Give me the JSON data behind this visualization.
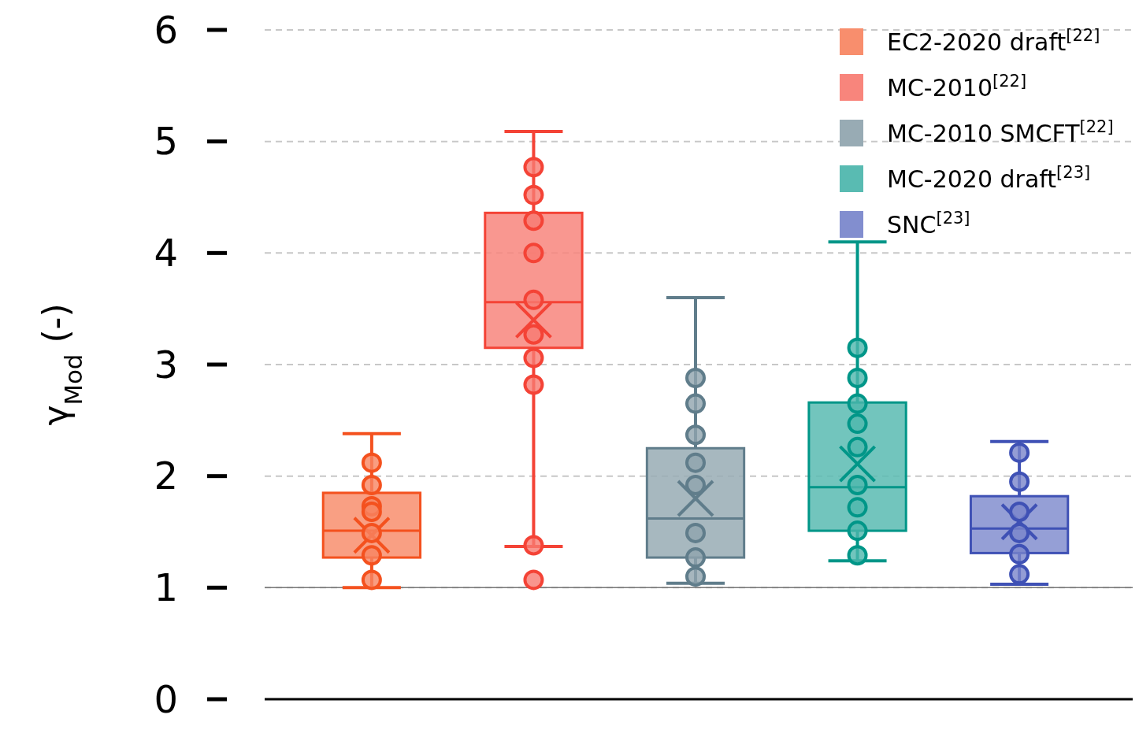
{
  "chart_data": {
    "type": "box",
    "ylabel": "γ$_{Mod}$ (-)",
    "categories": [
      null,
      null,
      null,
      null,
      null
    ],
    "ylim": [
      0,
      6
    ],
    "yticks": [
      0,
      1,
      2,
      3,
      4,
      5,
      6
    ],
    "grid": "y",
    "legend": "top right",
    "marker": "circle",
    "ref_lines": [
      {
        "axis": "y",
        "value": 1,
        "color": "#777777",
        "line_style": "solid"
      }
    ],
    "series": [
      {
        "name": "EC2-2020 draft$^{[22]}$",
        "color": "#f4511e",
        "boxes": [
          {
            "low": 1.0,
            "q1": 1.27,
            "median": 1.51,
            "q3": 1.85,
            "high": 2.38,
            "mean": 1.47
          },
          null,
          null,
          null,
          null
        ]
      },
      {
        "name": "MC-2010$^{[22]}$",
        "color": "#f44336",
        "boxes": [
          null,
          {
            "low": 1.37,
            "q1": 3.15,
            "median": 3.56,
            "q3": 4.36,
            "high": 5.09,
            "mean": 3.4,
            "outliers": [
              1.07
            ]
          },
          null,
          null,
          null
        ]
      },
      {
        "name": "MC-2010 SMCFT$^{[22]}$",
        "color": "#607d8b",
        "boxes": [
          null,
          null,
          {
            "low": 1.04,
            "q1": 1.27,
            "median": 1.62,
            "q3": 2.25,
            "high": 3.6,
            "mean": 1.8
          },
          null,
          null
        ]
      },
      {
        "name": "MC-2020 draft$^{[23]}$",
        "color": "#009688",
        "boxes": [
          null,
          null,
          null,
          {
            "low": 1.24,
            "q1": 1.51,
            "median": 1.9,
            "q3": 2.66,
            "high": 4.1,
            "mean": 2.11
          },
          null
        ]
      },
      {
        "name": "SNC$^{[23]}$",
        "color": "#3f51b5",
        "boxes": [
          null,
          null,
          null,
          null,
          {
            "low": 1.03,
            "q1": 1.31,
            "median": 1.53,
            "q3": 1.82,
            "high": 2.31,
            "mean": 1.59
          }
        ]
      },
      {
        "type": "scatter",
        "colors": [
          "#f4511e",
          "#f44336",
          "#607d8b",
          "#009688",
          "#3f51b5"
        ],
        "values": [
          2.12,
          4.77,
          2.88,
          3.15,
          2.21
        ]
      },
      {
        "type": "scatter",
        "colors": [
          "#f4511e",
          "#f44336",
          "#607d8b",
          "#009688",
          "#3f51b5"
        ],
        "values": [
          1.92,
          4.52,
          2.65,
          2.88,
          1.95
        ]
      },
      {
        "type": "scatter",
        "colors": [
          "#f4511e",
          "#f44336",
          "#607d8b",
          "#009688",
          "#3f51b5"
        ],
        "values": [
          1.73,
          4.29,
          2.37,
          2.65,
          1.68
        ]
      },
      {
        "type": "scatter",
        "colors": [
          "#f4511e",
          "#f44336",
          "#607d8b",
          "#009688",
          "#3f51b5"
        ],
        "values": [
          1.68,
          4.0,
          2.12,
          2.47,
          1.49
        ]
      },
      {
        "type": "scatter",
        "colors": [
          "#f4511e",
          "#f44336",
          "#607d8b",
          "#009688",
          "#3f51b5"
        ],
        "values": [
          1.49,
          3.58,
          1.92,
          2.26,
          1.3
        ]
      },
      {
        "type": "scatter",
        "colors": [
          "#f4511e",
          "#f44336",
          "#607d8b",
          "#009688",
          "#3f51b5"
        ],
        "values": [
          1.29,
          3.27,
          1.49,
          1.92,
          1.12
        ]
      },
      {
        "type": "scatter",
        "colors": [
          "#f4511e",
          "#f44336",
          "#607d8b",
          "#009688",
          null
        ],
        "values": [
          1.07,
          3.06,
          1.27,
          1.72,
          null
        ]
      },
      {
        "type": "scatter",
        "colors": [
          null,
          "#f44336",
          "#607d8b",
          "#009688",
          null
        ],
        "values": [
          null,
          2.82,
          1.1,
          1.51,
          null
        ]
      },
      {
        "type": "scatter",
        "colors": [
          null,
          "#f44336",
          null,
          "#009688",
          null
        ],
        "values": [
          null,
          1.38,
          null,
          1.29,
          null
        ]
      }
    ]
  }
}
